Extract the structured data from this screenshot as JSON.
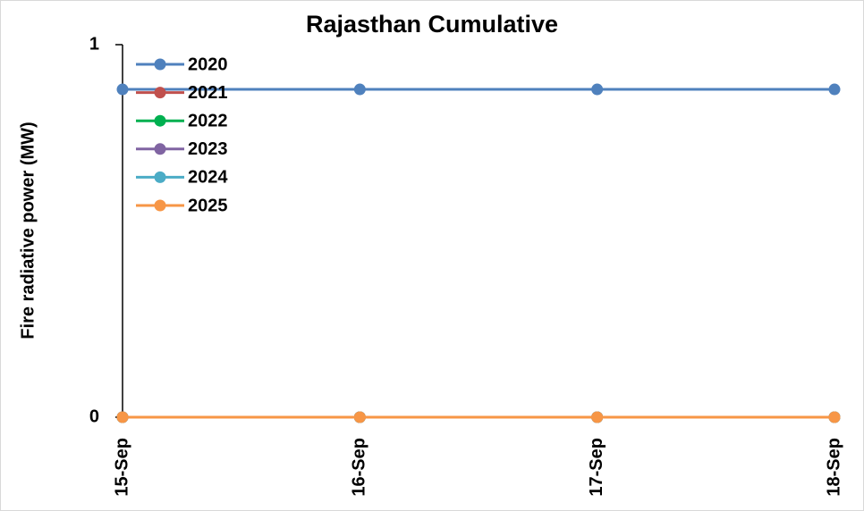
{
  "chart_data": {
    "type": "line",
    "title": "Rajasthan Cumulative",
    "y_label": "Fire radiative power (MW)",
    "categories": [
      "15-Sep",
      "16-Sep",
      "17-Sep",
      "18-Sep"
    ],
    "series": [
      {
        "name": "2020",
        "color": "#4f81bd",
        "values": [
          0.88,
          0.88,
          0.88,
          0.88
        ]
      },
      {
        "name": "2021",
        "color": "#c0504d",
        "values": [
          0,
          0,
          0,
          0
        ]
      },
      {
        "name": "2022",
        "color": "#00b050",
        "values": [
          0,
          0,
          0,
          0
        ]
      },
      {
        "name": "2023",
        "color": "#8064a2",
        "values": [
          0,
          0,
          0,
          0
        ]
      },
      {
        "name": "2024",
        "color": "#4bacc6",
        "values": [
          0,
          0,
          0,
          0
        ]
      },
      {
        "name": "2025",
        "color": "#f79646",
        "values": [
          0,
          0,
          0,
          0
        ]
      }
    ],
    "ylim": [
      0,
      1
    ],
    "yticks": [
      0,
      1
    ],
    "grid": false,
    "legend": "upper left"
  }
}
